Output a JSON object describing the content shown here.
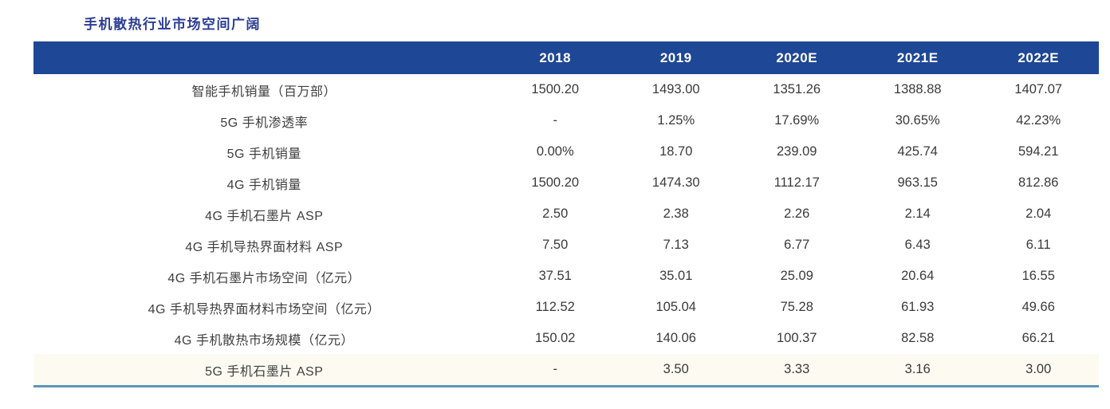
{
  "title": "手机散热行业市场空间广阔",
  "colors": {
    "header_background": "#1e4796",
    "header_text": "#ffffff",
    "title_text": "#2b3d94",
    "bottom_rule": "#5e95ba",
    "body_text": "#3a3a3a",
    "last_row_tint": "#fdfbf1"
  },
  "table": {
    "columns": [
      "2018",
      "2019",
      "2020E",
      "2021E",
      "2022E"
    ],
    "rows": [
      {
        "label": "智能手机销量（百万部）",
        "values": [
          "1500.20",
          "1493.00",
          "1351.26",
          "1388.88",
          "1407.07"
        ]
      },
      {
        "label": "5G 手机渗透率",
        "values": [
          "-",
          "1.25%",
          "17.69%",
          "30.65%",
          "42.23%"
        ]
      },
      {
        "label": "5G 手机销量",
        "values": [
          "0.00%",
          "18.70",
          "239.09",
          "425.74",
          "594.21"
        ]
      },
      {
        "label": "4G 手机销量",
        "values": [
          "1500.20",
          "1474.30",
          "1112.17",
          "963.15",
          "812.86"
        ]
      },
      {
        "label": "4G 手机石墨片 ASP",
        "values": [
          "2.50",
          "2.38",
          "2.26",
          "2.14",
          "2.04"
        ]
      },
      {
        "label": "4G 手机导热界面材料 ASP",
        "values": [
          "7.50",
          "7.13",
          "6.77",
          "6.43",
          "6.11"
        ]
      },
      {
        "label": "4G 手机石墨片市场空间（亿元）",
        "values": [
          "37.51",
          "35.01",
          "25.09",
          "20.64",
          "16.55"
        ]
      },
      {
        "label": "4G 手机导热界面材料市场空间（亿元）",
        "values": [
          "112.52",
          "105.04",
          "75.28",
          "61.93",
          "49.66"
        ]
      },
      {
        "label": "4G 手机散热市场规模（亿元）",
        "values": [
          "150.02",
          "140.06",
          "100.37",
          "82.58",
          "66.21"
        ]
      },
      {
        "label": "5G 手机石墨片 ASP",
        "values": [
          "-",
          "3.50",
          "3.33",
          "3.16",
          "3.00"
        ]
      }
    ]
  }
}
